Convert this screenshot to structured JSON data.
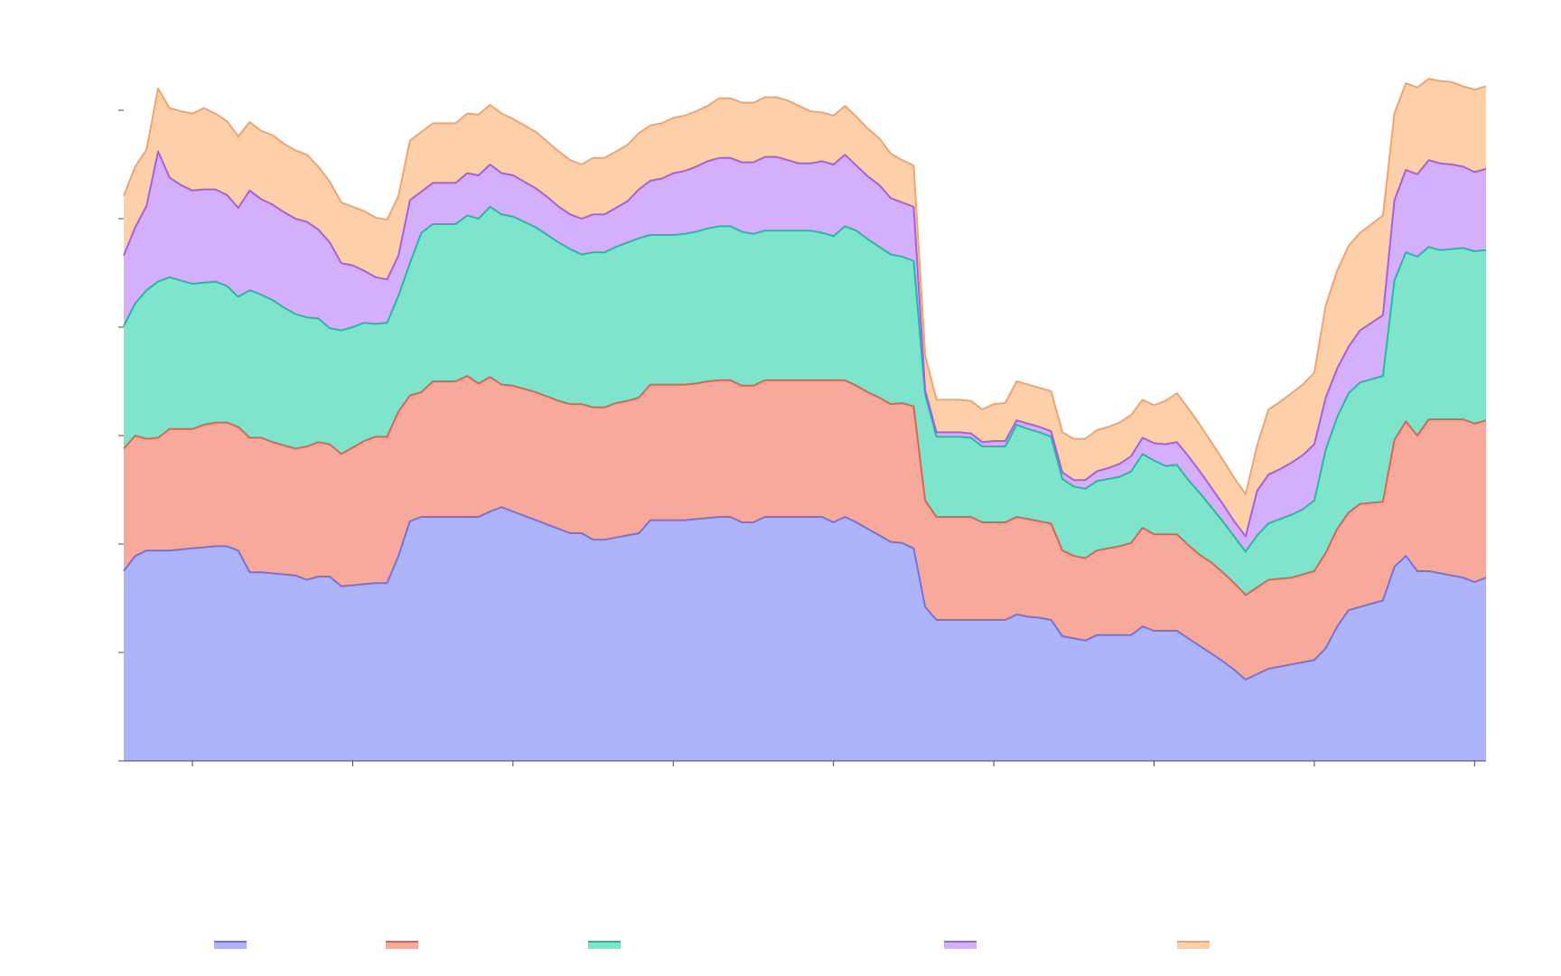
{
  "chart_data": {
    "type": "area",
    "stacked": true,
    "x": [
      0,
      1,
      2,
      3,
      4,
      5,
      6,
      7,
      8,
      9,
      10,
      11,
      12,
      13,
      14,
      15,
      16,
      17,
      18,
      19,
      20,
      21,
      22,
      23,
      24,
      25,
      26,
      27,
      28,
      29,
      30,
      31,
      32,
      33,
      34,
      35,
      36,
      37,
      38,
      39,
      40,
      41,
      42,
      43,
      44,
      45,
      46,
      47,
      48,
      49,
      50,
      51,
      52,
      53,
      54,
      55,
      56,
      57,
      58,
      59,
      60,
      61,
      62,
      63,
      64,
      65,
      66,
      67,
      68,
      69,
      70,
      71,
      72,
      73,
      74,
      75,
      76,
      77,
      78,
      79,
      80,
      81,
      82,
      83,
      84,
      85,
      86,
      87,
      88,
      89,
      90,
      91,
      92,
      93,
      94,
      95,
      96,
      97,
      98,
      99,
      100,
      101,
      102,
      103,
      104,
      105,
      106,
      107,
      108,
      109,
      110,
      111,
      112,
      113,
      114,
      115,
      116,
      117,
      118,
      119
    ],
    "xlim": [
      0,
      119
    ],
    "ylim": [
      0,
      6
    ],
    "x_ticks": [
      6,
      20,
      34,
      48,
      62,
      76,
      90,
      104,
      118
    ],
    "y_ticks": [
      0,
      1,
      2,
      3,
      4,
      5,
      6
    ],
    "grid": false,
    "legend_position": "bottom",
    "series": [
      {
        "color": "#6c74e8",
        "fill": "#aeb4fa",
        "values": [
          1.75,
          1.89,
          1.94,
          1.94,
          1.94,
          1.95,
          1.96,
          1.97,
          1.98,
          1.98,
          1.94,
          1.74,
          1.74,
          1.73,
          1.72,
          1.71,
          1.67,
          1.7,
          1.7,
          1.61,
          1.62,
          1.63,
          1.64,
          1.64,
          1.89,
          2.21,
          2.25,
          2.25,
          2.25,
          2.25,
          2.25,
          2.25,
          2.3,
          2.34,
          2.3,
          2.26,
          2.22,
          2.18,
          2.14,
          2.1,
          2.1,
          2.04,
          2.04,
          2.06,
          2.08,
          2.1,
          2.22,
          2.22,
          2.22,
          2.22,
          2.23,
          2.24,
          2.25,
          2.25,
          2.2,
          2.2,
          2.25,
          2.25,
          2.25,
          2.25,
          2.25,
          2.25,
          2.2,
          2.25,
          2.2,
          2.14,
          2.08,
          2.02,
          2.01,
          1.96,
          1.42,
          1.3,
          1.3,
          1.3,
          1.3,
          1.3,
          1.3,
          1.3,
          1.35,
          1.33,
          1.32,
          1.3,
          1.15,
          1.13,
          1.11,
          1.16,
          1.16,
          1.16,
          1.16,
          1.24,
          1.2,
          1.2,
          1.2,
          1.13,
          1.06,
          0.99,
          0.92,
          0.84,
          0.75,
          0.8,
          0.85,
          0.87,
          0.89,
          0.91,
          0.93,
          1.04,
          1.24,
          1.39,
          1.42,
          1.45,
          1.48,
          1.79,
          1.89,
          1.75,
          1.75,
          1.73,
          1.71,
          1.69,
          1.65,
          1.69
        ]
      },
      {
        "color": "#e8604c",
        "fill": "#f7a99b",
        "values": [
          1.13,
          1.11,
          1.03,
          1.04,
          1.12,
          1.11,
          1.1,
          1.13,
          1.14,
          1.14,
          1.14,
          1.24,
          1.24,
          1.21,
          1.19,
          1.17,
          1.23,
          1.24,
          1.22,
          1.22,
          1.27,
          1.32,
          1.35,
          1.35,
          1.33,
          1.16,
          1.15,
          1.25,
          1.25,
          1.25,
          1.3,
          1.23,
          1.24,
          1.13,
          1.16,
          1.17,
          1.18,
          1.18,
          1.18,
          1.19,
          1.19,
          1.22,
          1.22,
          1.24,
          1.24,
          1.25,
          1.25,
          1.25,
          1.25,
          1.25,
          1.25,
          1.26,
          1.26,
          1.26,
          1.26,
          1.26,
          1.26,
          1.26,
          1.26,
          1.26,
          1.26,
          1.26,
          1.31,
          1.26,
          1.26,
          1.26,
          1.27,
          1.27,
          1.29,
          1.31,
          0.98,
          0.95,
          0.95,
          0.95,
          0.95,
          0.9,
          0.9,
          0.9,
          0.9,
          0.9,
          0.89,
          0.89,
          0.79,
          0.76,
          0.76,
          0.78,
          0.8,
          0.82,
          0.85,
          0.91,
          0.89,
          0.89,
          0.89,
          0.86,
          0.84,
          0.84,
          0.82,
          0.8,
          0.78,
          0.8,
          0.82,
          0.81,
          0.8,
          0.81,
          0.82,
          0.88,
          0.9,
          0.9,
          0.95,
          0.93,
          0.91,
          1.17,
          1.24,
          1.25,
          1.4,
          1.42,
          1.44,
          1.46,
          1.46,
          1.45
        ]
      },
      {
        "color": "#1cbf99",
        "fill": "#7ee4cc",
        "values": [
          1.13,
          1.22,
          1.37,
          1.44,
          1.4,
          1.37,
          1.34,
          1.31,
          1.3,
          1.26,
          1.2,
          1.36,
          1.32,
          1.31,
          1.27,
          1.24,
          1.19,
          1.14,
          1.07,
          1.14,
          1.11,
          1.09,
          1.04,
          1.05,
          1.07,
          1.22,
          1.47,
          1.45,
          1.45,
          1.45,
          1.48,
          1.52,
          1.57,
          1.57,
          1.56,
          1.54,
          1.52,
          1.49,
          1.46,
          1.43,
          1.38,
          1.43,
          1.43,
          1.44,
          1.46,
          1.47,
          1.38,
          1.38,
          1.38,
          1.39,
          1.4,
          1.41,
          1.42,
          1.42,
          1.42,
          1.4,
          1.38,
          1.38,
          1.38,
          1.38,
          1.38,
          1.36,
          1.33,
          1.42,
          1.43,
          1.41,
          1.39,
          1.38,
          1.35,
          1.34,
          0.98,
          0.74,
          0.74,
          0.74,
          0.73,
          0.7,
          0.7,
          0.7,
          0.85,
          0.83,
          0.82,
          0.8,
          0.66,
          0.64,
          0.64,
          0.64,
          0.64,
          0.64,
          0.66,
          0.68,
          0.68,
          0.63,
          0.64,
          0.6,
          0.57,
          0.51,
          0.47,
          0.43,
          0.4,
          0.48,
          0.52,
          0.55,
          0.58,
          0.6,
          0.65,
          0.95,
          1.03,
          1.1,
          1.12,
          1.14,
          1.16,
          1.47,
          1.56,
          1.65,
          1.59,
          1.56,
          1.57,
          1.58,
          1.59,
          1.57
        ]
      },
      {
        "color": "#a25ef0",
        "fill": "#d4b0fc",
        "values": [
          0.65,
          0.7,
          0.78,
          1.2,
          0.92,
          0.88,
          0.86,
          0.86,
          0.85,
          0.84,
          0.82,
          0.92,
          0.88,
          0.88,
          0.88,
          0.88,
          0.88,
          0.82,
          0.79,
          0.62,
          0.57,
          0.48,
          0.43,
          0.4,
          0.37,
          0.58,
          0.38,
          0.38,
          0.38,
          0.38,
          0.39,
          0.4,
          0.39,
          0.38,
          0.38,
          0.37,
          0.36,
          0.35,
          0.33,
          0.32,
          0.33,
          0.35,
          0.35,
          0.36,
          0.38,
          0.45,
          0.5,
          0.52,
          0.57,
          0.58,
          0.6,
          0.62,
          0.63,
          0.63,
          0.64,
          0.66,
          0.68,
          0.68,
          0.65,
          0.62,
          0.62,
          0.66,
          0.66,
          0.66,
          0.6,
          0.58,
          0.57,
          0.52,
          0.5,
          0.5,
          0.04,
          0.04,
          0.04,
          0.04,
          0.04,
          0.04,
          0.05,
          0.05,
          0.04,
          0.05,
          0.05,
          0.05,
          0.06,
          0.06,
          0.08,
          0.09,
          0.1,
          0.12,
          0.14,
          0.15,
          0.16,
          0.2,
          0.21,
          0.22,
          0.2,
          0.18,
          0.16,
          0.14,
          0.14,
          0.41,
          0.45,
          0.46,
          0.48,
          0.5,
          0.52,
          0.48,
          0.45,
          0.43,
          0.48,
          0.52,
          0.56,
          0.74,
          0.76,
          0.76,
          0.8,
          0.8,
          0.78,
          0.75,
          0.73,
          0.75
        ]
      },
      {
        "color": "#f5a26b",
        "fill": "#fdd0aa",
        "values": [
          0.55,
          0.56,
          0.52,
          0.58,
          0.64,
          0.68,
          0.71,
          0.75,
          0.7,
          0.68,
          0.66,
          0.63,
          0.63,
          0.64,
          0.63,
          0.63,
          0.62,
          0.58,
          0.56,
          0.56,
          0.54,
          0.55,
          0.55,
          0.55,
          0.55,
          0.55,
          0.55,
          0.55,
          0.55,
          0.55,
          0.55,
          0.56,
          0.55,
          0.55,
          0.52,
          0.52,
          0.52,
          0.51,
          0.51,
          0.5,
          0.5,
          0.52,
          0.52,
          0.52,
          0.52,
          0.52,
          0.51,
          0.51,
          0.51,
          0.51,
          0.51,
          0.51,
          0.55,
          0.55,
          0.55,
          0.55,
          0.55,
          0.55,
          0.55,
          0.53,
          0.48,
          0.45,
          0.45,
          0.45,
          0.45,
          0.44,
          0.43,
          0.41,
          0.39,
          0.38,
          0.32,
          0.3,
          0.3,
          0.3,
          0.3,
          0.3,
          0.34,
          0.35,
          0.36,
          0.36,
          0.36,
          0.37,
          0.37,
          0.38,
          0.38,
          0.38,
          0.38,
          0.38,
          0.38,
          0.35,
          0.35,
          0.4,
          0.45,
          0.44,
          0.43,
          0.42,
          0.41,
          0.4,
          0.39,
          0.42,
          0.6,
          0.62,
          0.64,
          0.65,
          0.66,
          0.85,
          0.9,
          0.93,
          0.9,
          0.91,
          0.92,
          0.8,
          0.8,
          0.8,
          0.75,
          0.76,
          0.76,
          0.74,
          0.76,
          0.76
        ]
      }
    ]
  }
}
